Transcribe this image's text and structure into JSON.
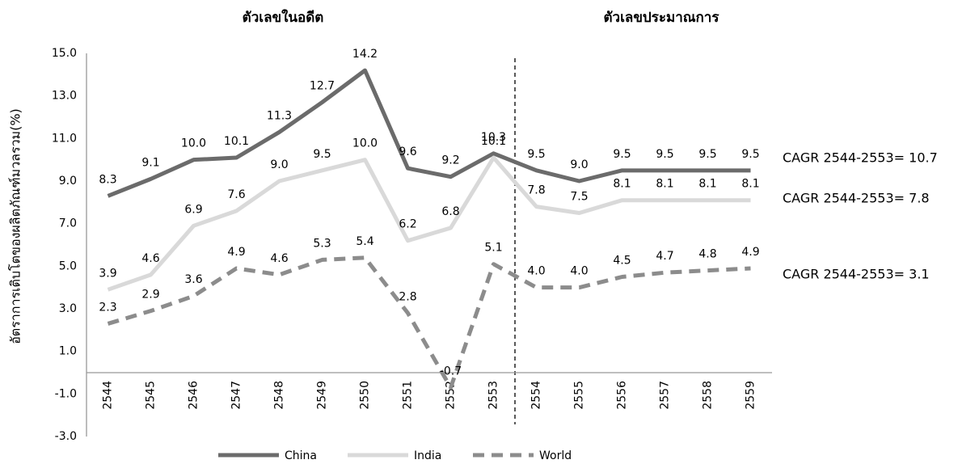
{
  "chart_data": {
    "type": "line",
    "section_labels": [
      "ตัวเลขในอดีต",
      "ตัวเลขประมาณการ"
    ],
    "y_axis_label": "อัตราการเติบโตของผลิตภัณฑ์มวลรวม(%)",
    "categories": [
      "2544",
      "2545",
      "2546",
      "2547",
      "2548",
      "2549",
      "2550",
      "2551",
      "2552",
      "2553",
      "2554",
      "2555",
      "2556",
      "2557",
      "2558",
      "2559"
    ],
    "series": [
      {
        "name": "China",
        "color": "#6b6b6b",
        "dash": false,
        "values": [
          8.3,
          9.1,
          10.0,
          10.1,
          11.3,
          12.7,
          14.2,
          9.6,
          9.2,
          10.3,
          9.5,
          9.0,
          9.5,
          9.5,
          9.5,
          9.5
        ],
        "value_labels": [
          "8.3",
          "9.1",
          "10.0",
          "10.1",
          "11.3",
          "12.7",
          "14.2",
          "9.6",
          "9.2",
          "10.3",
          "9.5",
          "9.0",
          "9.5",
          "9.5",
          "9.5",
          "9.5"
        ]
      },
      {
        "name": "India",
        "color": "#d9d9d9",
        "dash": false,
        "values": [
          3.9,
          4.6,
          6.9,
          7.6,
          9.0,
          9.5,
          10.0,
          6.2,
          6.8,
          10.1,
          7.8,
          7.5,
          8.1,
          8.1,
          8.1,
          8.1
        ],
        "value_labels": [
          "3.9",
          "4.6",
          "6.9",
          "7.6",
          "9.0",
          "9.5",
          "10.0",
          "6.2",
          "6.8",
          "10.1",
          "7.8",
          "7.5",
          "8.1",
          "8.1",
          "8.1",
          "8.1"
        ]
      },
      {
        "name": "World",
        "color": "#8c8c8c",
        "dash": true,
        "values": [
          2.3,
          2.9,
          3.6,
          4.9,
          4.6,
          5.3,
          5.4,
          2.8,
          -0.7,
          5.1,
          4.0,
          4.0,
          4.5,
          4.7,
          4.8,
          4.9
        ],
        "value_labels": [
          "2.3",
          "2.9",
          "3.6",
          "4.9",
          "4.6",
          "5.3",
          "5.4",
          "2.8",
          "-0.7",
          "5.1",
          "4.0",
          "4.0",
          "4.5",
          "4.7",
          "4.8",
          "4.9"
        ]
      }
    ],
    "annotations": [
      "CAGR 2544-2553= 10.7",
      "CAGR 2544-2553= 7.8",
      "CAGR 2544-2553= 3.1"
    ],
    "ylim": [
      -3,
      15
    ],
    "yticks": [
      {
        "value": -3,
        "label": "-3.0"
      },
      {
        "value": -1,
        "label": "-1.0"
      },
      {
        "value": 1,
        "label": "1.0"
      },
      {
        "value": 3,
        "label": "3.0"
      },
      {
        "value": 5,
        "label": "5.0"
      },
      {
        "value": 7,
        "label": "7.0"
      },
      {
        "value": 9,
        "label": "9.0"
      },
      {
        "value": 11,
        "label": "11.0"
      },
      {
        "value": 13,
        "label": "13.0"
      },
      {
        "value": 15,
        "label": "15.0"
      }
    ],
    "grid": false,
    "legend": "bottom"
  }
}
